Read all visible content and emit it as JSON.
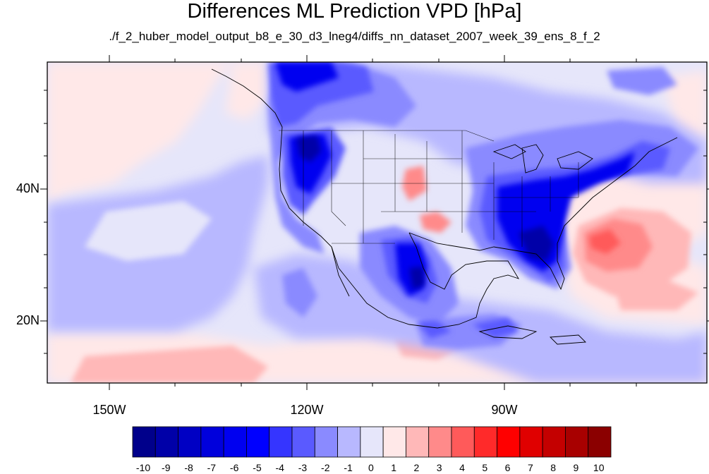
{
  "header": {
    "title": "Differences ML Prediction VPD [hPa]",
    "subtitle": "./f_2_huber_model_output_b8_e_30_d3_lneg4/diffs_nn_dataset_2007_week_39_ens_8_f_2"
  },
  "map": {
    "projection": "cylindrical-equidistant",
    "lon_range": [
      -160,
      -62
    ],
    "lat_range": [
      11,
      58
    ],
    "lon_tick_labels": [
      "150W",
      "120W",
      "90W"
    ],
    "lat_tick_labels": [
      "40N",
      "20N"
    ],
    "background_color": "#e6e6fa"
  },
  "colorbar": {
    "labels": [
      "-10",
      "-9",
      "-8",
      "-7",
      "-6",
      "-5",
      "-4",
      "-3",
      "-2",
      "-1",
      "0",
      "1",
      "2",
      "3",
      "4",
      "5",
      "6",
      "7",
      "8",
      "9",
      "10"
    ],
    "colors": [
      "#00008b",
      "#0000a8",
      "#0000c4",
      "#0000dc",
      "#0000f0",
      "#0000ff",
      "#3535ff",
      "#5a5aff",
      "#8a8aff",
      "#b8b8ff",
      "#e6e6fa",
      "#ffe8e8",
      "#ffb8b8",
      "#ff8a8a",
      "#ff5a5a",
      "#ff2a2a",
      "#ff0000",
      "#e00000",
      "#c40000",
      "#a80000",
      "#8b0000"
    ]
  }
}
